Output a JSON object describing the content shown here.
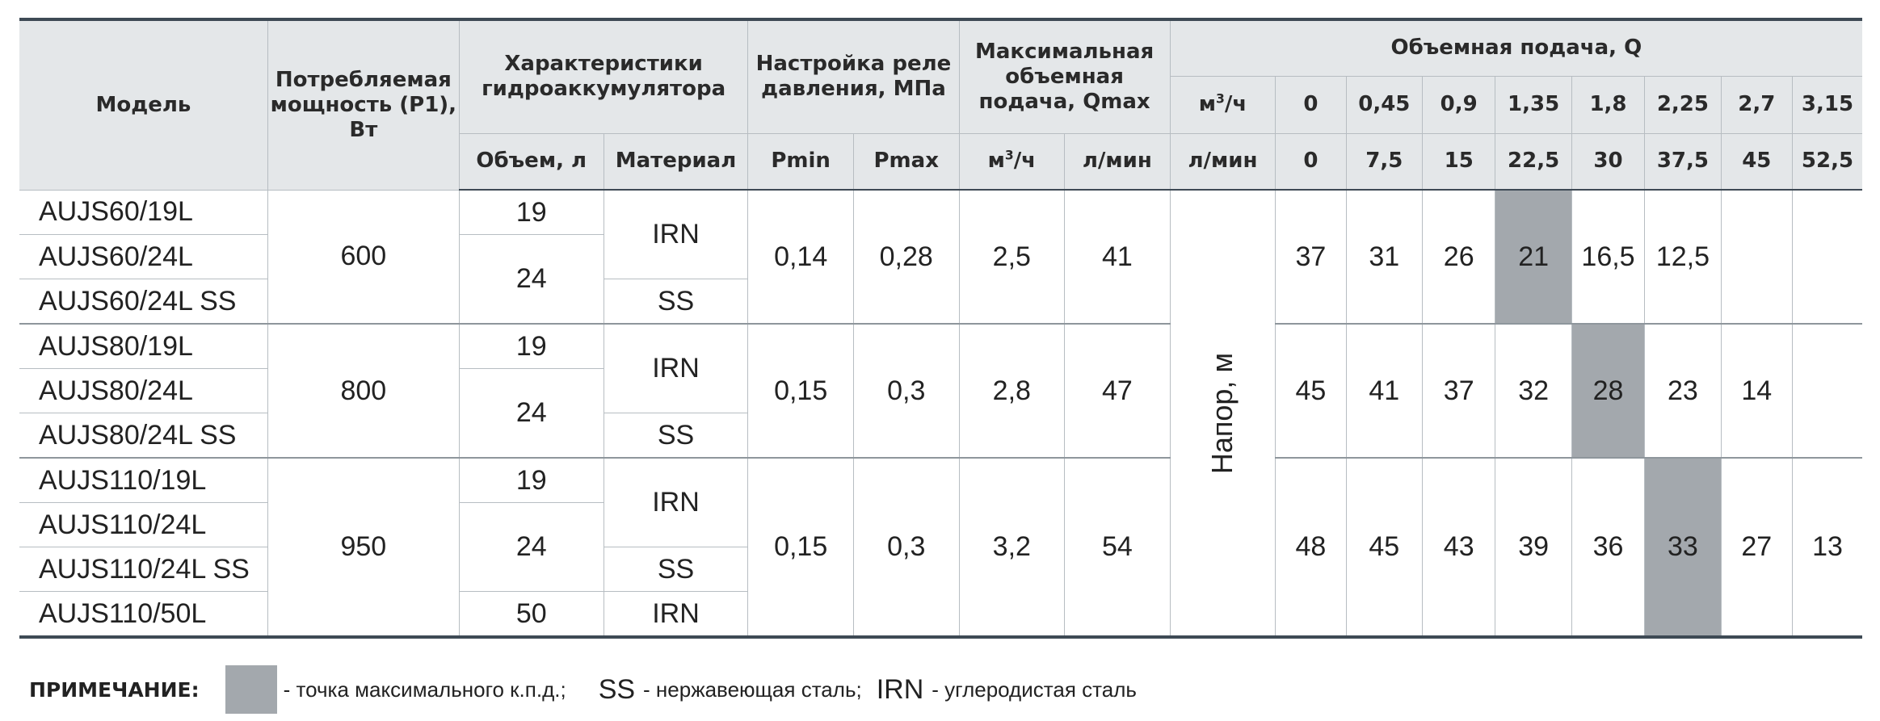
{
  "header": {
    "model": "Модель",
    "power": "Потребляемая мощность (P1), Вт",
    "accumulator": "Характеристики гидроаккумулятора",
    "relay": "Настройка реле давления, МПа",
    "max_flow": "Максимальная объемная подача, Qmax",
    "flow": "Объемная подача, Q",
    "volume": "Объем, л",
    "material": "Материал",
    "pmin": "Pmin",
    "pmax": "Pmax",
    "unit_m3h_a": "м",
    "unit_m3h_b": "/ч",
    "unit_lmin": "л/мин",
    "q_m3h": [
      "0",
      "0,45",
      "0,9",
      "1,35",
      "1,8",
      "2,25",
      "2,7",
      "3,15"
    ],
    "q_lmin": [
      "0",
      "7,5",
      "15",
      "22,5",
      "30",
      "37,5",
      "45",
      "52,5"
    ]
  },
  "head_label": "Напор, м",
  "groups": [
    {
      "power": "600",
      "pmin": "0,14",
      "pmax": "0,28",
      "qmax_m3h": "2,5",
      "qmax_lmin": "41",
      "head": [
        "37",
        "31",
        "26",
        "21",
        "16,5",
        "12,5",
        "",
        ""
      ],
      "highlight": 3,
      "rows": [
        {
          "model": "AUJS60/19L",
          "volume": "19",
          "material": "IRN"
        },
        {
          "model": "AUJS60/24L",
          "volume": "24",
          "material": "IRN"
        },
        {
          "model": "AUJS60/24L SS",
          "volume": "24",
          "material": "SS"
        }
      ]
    },
    {
      "power": "800",
      "pmin": "0,15",
      "pmax": "0,3",
      "qmax_m3h": "2,8",
      "qmax_lmin": "47",
      "head": [
        "45",
        "41",
        "37",
        "32",
        "28",
        "23",
        "14",
        ""
      ],
      "highlight": 4,
      "rows": [
        {
          "model": "AUJS80/19L",
          "volume": "19",
          "material": "IRN"
        },
        {
          "model": "AUJS80/24L",
          "volume": "24",
          "material": "IRN"
        },
        {
          "model": "AUJS80/24L SS",
          "volume": "24",
          "material": "SS"
        }
      ]
    },
    {
      "power": "950",
      "pmin": "0,15",
      "pmax": "0,3",
      "qmax_m3h": "3,2",
      "qmax_lmin": "54",
      "head": [
        "48",
        "45",
        "43",
        "39",
        "36",
        "33",
        "27",
        "13"
      ],
      "highlight": 5,
      "rows": [
        {
          "model": "AUJS110/19L",
          "volume": "19",
          "material": "IRN"
        },
        {
          "model": "AUJS110/24L",
          "volume": "24",
          "material": "IRN"
        },
        {
          "model": "AUJS110/24L SS",
          "volume": "24",
          "material": "SS"
        },
        {
          "model": "AUJS110/50L",
          "volume": "50",
          "material": "IRN"
        }
      ]
    }
  ],
  "note": {
    "label": "ПРИМЕЧАНИЕ:",
    "swatch_text": "- точка максимального к.п.д.;",
    "ss_abbr": "SS",
    "ss_text": "- нержавеющая сталь;",
    "irn_abbr": "IRN",
    "irn_text": "- углеродистая сталь"
  },
  "colors": {
    "highlight": "#a3a8ad",
    "header_bg": "#e4e7e9",
    "rule": "#3e4a55"
  }
}
